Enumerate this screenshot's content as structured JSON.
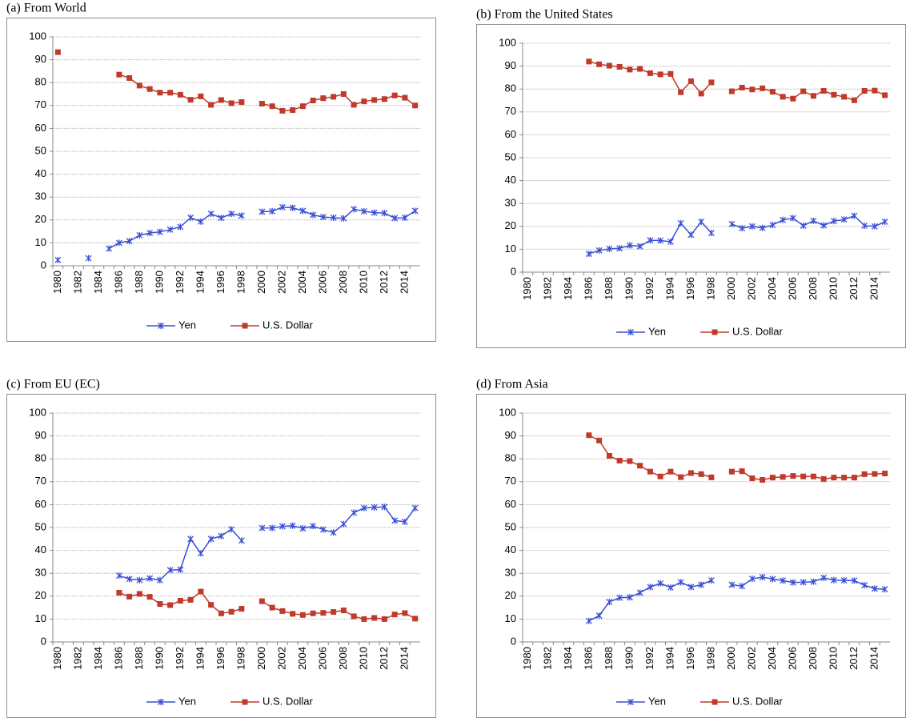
{
  "chart_data": [
    {
      "type": "line",
      "title": "(a) From World",
      "categories": [
        "1980",
        null,
        "1982",
        null,
        "1984",
        null,
        "1986",
        null,
        "1988",
        null,
        "1990",
        null,
        "1992",
        null,
        "1994",
        null,
        "1996",
        null,
        "1998",
        null,
        "2000",
        null,
        "2002",
        null,
        "2004",
        null,
        "2006",
        null,
        "2008",
        null,
        "2010",
        null,
        "2012",
        null,
        "2014",
        null
      ],
      "series": [
        {
          "name": "Yen",
          "color": "#3a4fd6",
          "values": [
            2.5,
            null,
            null,
            3.3,
            null,
            7.5,
            10,
            10.8,
            13.3,
            14.3,
            14.8,
            15.8,
            17,
            21,
            19.3,
            22.7,
            20.9,
            22.7,
            21.9,
            null,
            23.6,
            23.8,
            25.6,
            25.3,
            24,
            22.2,
            21.3,
            21,
            20.7,
            24.7,
            23.8,
            23.2,
            23,
            20.8,
            21,
            24
          ]
        },
        {
          "name": "U.S. Dollar",
          "color": "#c0392b",
          "values": [
            93.3,
            null,
            null,
            null,
            null,
            null,
            83.5,
            82,
            78.7,
            77.2,
            75.6,
            75.6,
            74.7,
            72.5,
            74,
            70.3,
            72.4,
            71,
            71.5,
            null,
            70.8,
            69.7,
            67.7,
            68,
            69.7,
            72.2,
            73.2,
            73.8,
            75,
            70.3,
            71.8,
            72.4,
            72.8,
            74.4,
            73.4,
            70
          ]
        }
      ],
      "ylim": [
        0,
        100
      ],
      "yticks": [
        0,
        10,
        20,
        30,
        40,
        50,
        60,
        70,
        80,
        90,
        100
      ],
      "grid": true,
      "legend": "bottom"
    },
    {
      "type": "line",
      "title": "(b) From the United States",
      "categories": [
        "1980",
        null,
        "1982",
        null,
        "1984",
        null,
        "1986",
        null,
        "1988",
        null,
        "1990",
        null,
        "1992",
        null,
        "1994",
        null,
        "1996",
        null,
        "1998",
        null,
        "2000",
        null,
        "2002",
        null,
        "2004",
        null,
        "2006",
        null,
        "2008",
        null,
        "2010",
        null,
        "2012",
        null,
        "2014",
        null
      ],
      "series": [
        {
          "name": "Yen",
          "color": "#3a4fd6",
          "values": [
            null,
            null,
            null,
            null,
            null,
            null,
            8,
            9.5,
            10.2,
            10.4,
            11.7,
            11.3,
            13.9,
            13.8,
            13.3,
            21.4,
            16.3,
            22,
            17.1,
            null,
            21,
            19.2,
            20,
            19.3,
            20.6,
            22.8,
            23.6,
            20.3,
            22.4,
            20.4,
            22.3,
            23,
            24.6,
            20.3,
            20,
            22
          ]
        },
        {
          "name": "U.S. Dollar",
          "color": "#c0392b",
          "values": [
            null,
            null,
            null,
            null,
            null,
            null,
            92,
            90.8,
            90.2,
            89.7,
            88.5,
            88.8,
            86.9,
            86.4,
            86.6,
            78.6,
            83.4,
            78,
            82.9,
            null,
            79,
            80.6,
            79.8,
            80.3,
            78.8,
            76.6,
            75.8,
            79,
            77,
            79.2,
            77.5,
            76.6,
            75.1,
            79.2,
            79.3,
            77.3
          ]
        }
      ],
      "ylim": [
        0,
        100
      ],
      "yticks": [
        0,
        10,
        20,
        30,
        40,
        50,
        60,
        70,
        80,
        90,
        100
      ],
      "grid": true,
      "legend": "bottom"
    },
    {
      "type": "line",
      "title": "(c) From EU (EC)",
      "categories": [
        "1980",
        null,
        "1982",
        null,
        "1984",
        null,
        "1986",
        null,
        "1988",
        null,
        "1990",
        null,
        "1992",
        null,
        "1994",
        null,
        "1996",
        null,
        "1998",
        null,
        "2000",
        null,
        "2002",
        null,
        "2004",
        null,
        "2006",
        null,
        "2008",
        null,
        "2010",
        null,
        "2012",
        null,
        "2014",
        null
      ],
      "series": [
        {
          "name": "Yen",
          "color": "#3a4fd6",
          "values": [
            null,
            null,
            null,
            null,
            null,
            null,
            29,
            27.5,
            27,
            27.8,
            27,
            31.4,
            31.6,
            45,
            38.7,
            45,
            46.3,
            49.2,
            44.3,
            null,
            49.8,
            49.8,
            50.5,
            50.8,
            49.6,
            50.6,
            49.1,
            47.8,
            51.5,
            56.5,
            58.5,
            58.8,
            59,
            53,
            52.5,
            58.5
          ]
        },
        {
          "name": "U.S. Dollar",
          "color": "#c0392b",
          "values": [
            null,
            null,
            null,
            null,
            null,
            null,
            21.5,
            19.8,
            21,
            19.7,
            16.6,
            16.1,
            18,
            18.4,
            22,
            16.2,
            12.5,
            13.2,
            14.5,
            null,
            17.8,
            15,
            13.5,
            12.3,
            11.8,
            12.5,
            12.7,
            13.1,
            13.8,
            11.2,
            10,
            10.5,
            10,
            12,
            12.6,
            10.2
          ]
        }
      ],
      "ylim": [
        0,
        100
      ],
      "yticks": [
        0,
        10,
        20,
        30,
        40,
        50,
        60,
        70,
        80,
        90,
        100
      ],
      "grid": true,
      "legend": "bottom"
    },
    {
      "type": "line",
      "title": "(d) From Asia",
      "categories": [
        "1980",
        null,
        "1982",
        null,
        "1984",
        null,
        "1986",
        null,
        "1988",
        null,
        "1990",
        null,
        "1992",
        null,
        "1994",
        null,
        "1996",
        null,
        "1998",
        null,
        "2000",
        null,
        "2002",
        null,
        "2004",
        null,
        "2006",
        null,
        "2008",
        null,
        "2010",
        null,
        "2012",
        null,
        "2014",
        null
      ],
      "series": [
        {
          "name": "Yen",
          "color": "#3a4fd6",
          "values": [
            null,
            null,
            null,
            null,
            null,
            null,
            9.2,
            11.5,
            17.5,
            19.3,
            19.5,
            21.5,
            24,
            25.6,
            23.8,
            26.1,
            24,
            25,
            26.9,
            null,
            25,
            24.4,
            27.6,
            28.3,
            27.5,
            26.8,
            26,
            26.1,
            26.3,
            28,
            27,
            26.9,
            26.8,
            24.8,
            23.3,
            23
          ]
        },
        {
          "name": "U.S. Dollar",
          "color": "#c0392b",
          "values": [
            null,
            null,
            null,
            null,
            null,
            null,
            90.3,
            88,
            81.3,
            79.2,
            79,
            77,
            74.4,
            72.3,
            74.4,
            72,
            73.8,
            73.3,
            71.9,
            null,
            74.4,
            74.6,
            71.5,
            70.8,
            71.8,
            72.1,
            72.5,
            72.3,
            72.3,
            71.2,
            71.8,
            71.8,
            71.8,
            73.3,
            73.4,
            73.6
          ]
        }
      ],
      "ylim": [
        0,
        100
      ],
      "yticks": [
        0,
        10,
        20,
        30,
        40,
        50,
        60,
        70,
        80,
        90,
        100
      ],
      "grid": true,
      "legend": "bottom"
    }
  ]
}
